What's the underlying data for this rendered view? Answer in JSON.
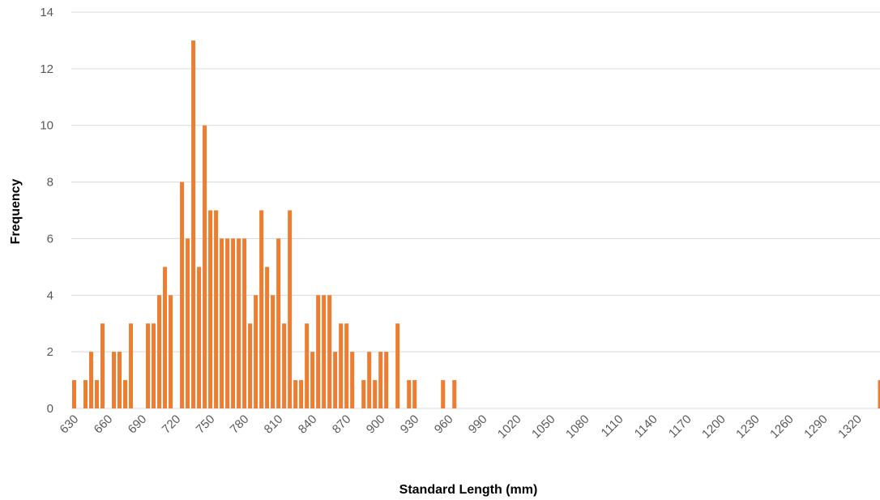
{
  "chart_data": {
    "type": "bar",
    "title": "",
    "xlabel": "Standard Length (mm)",
    "ylabel": "Frequency",
    "ylim": [
      0,
      14
    ],
    "yticks": [
      0,
      2,
      4,
      6,
      8,
      10,
      12,
      14
    ],
    "grid": true,
    "bar_color": "#ED7D31",
    "grid_color": "#D9D9D9",
    "x": [
      630,
      635,
      640,
      645,
      650,
      655,
      660,
      665,
      670,
      675,
      680,
      685,
      690,
      695,
      700,
      705,
      710,
      715,
      720,
      725,
      730,
      735,
      740,
      745,
      750,
      755,
      760,
      765,
      770,
      775,
      780,
      785,
      790,
      795,
      800,
      805,
      810,
      815,
      820,
      825,
      830,
      835,
      840,
      845,
      850,
      855,
      860,
      865,
      870,
      875,
      880,
      885,
      890,
      895,
      900,
      905,
      910,
      915,
      920,
      925,
      930,
      935,
      940,
      945,
      950,
      955,
      960,
      965,
      970,
      975,
      980,
      985,
      990,
      995,
      1000,
      1005,
      1010,
      1015,
      1020,
      1025,
      1030,
      1035,
      1040,
      1045,
      1050,
      1055,
      1060,
      1065,
      1070,
      1075,
      1080,
      1085,
      1090,
      1095,
      1100,
      1105,
      1110,
      1115,
      1120,
      1125,
      1130,
      1135,
      1140,
      1145,
      1150,
      1155,
      1160,
      1165,
      1170,
      1175,
      1180,
      1185,
      1190,
      1195,
      1200,
      1205,
      1210,
      1215,
      1220,
      1225,
      1230,
      1235,
      1240,
      1245,
      1250,
      1255,
      1260,
      1265,
      1270,
      1275,
      1280,
      1285,
      1290,
      1295,
      1300,
      1305,
      1310,
      1315,
      1320,
      1325,
      1330,
      1335,
      1340
    ],
    "values": [
      1,
      0,
      1,
      2,
      1,
      3,
      0,
      2,
      2,
      1,
      3,
      0,
      0,
      3,
      3,
      4,
      5,
      4,
      0,
      8,
      6,
      13,
      5,
      10,
      7,
      7,
      6,
      6,
      6,
      6,
      6,
      3,
      4,
      7,
      5,
      4,
      6,
      3,
      7,
      1,
      1,
      3,
      2,
      4,
      4,
      4,
      2,
      3,
      3,
      2,
      0,
      1,
      2,
      1,
      2,
      2,
      0,
      3,
      0,
      1,
      1,
      0,
      0,
      0,
      0,
      1,
      0,
      1,
      0,
      0,
      0,
      0,
      0,
      0,
      0,
      0,
      0,
      0,
      0,
      0,
      0,
      0,
      0,
      0,
      0,
      0,
      0,
      0,
      0,
      0,
      0,
      0,
      0,
      0,
      0,
      0,
      0,
      0,
      0,
      0,
      0,
      0,
      0,
      0,
      0,
      0,
      0,
      0,
      0,
      0,
      0,
      0,
      0,
      0,
      0,
      0,
      0,
      0,
      0,
      0,
      0,
      0,
      0,
      0,
      0,
      0,
      0,
      0,
      0,
      0,
      0,
      0,
      0,
      0,
      0,
      0,
      0,
      0,
      0,
      0,
      0,
      0,
      1
    ],
    "xtick_labels": [
      "630",
      "660",
      "690",
      "720",
      "750",
      "780",
      "810",
      "840",
      "870",
      "900",
      "930",
      "960",
      "990",
      "1020",
      "1050",
      "1080",
      "1110",
      "1140",
      "1170",
      "1200",
      "1230",
      "1260",
      "1290",
      "1320"
    ]
  }
}
